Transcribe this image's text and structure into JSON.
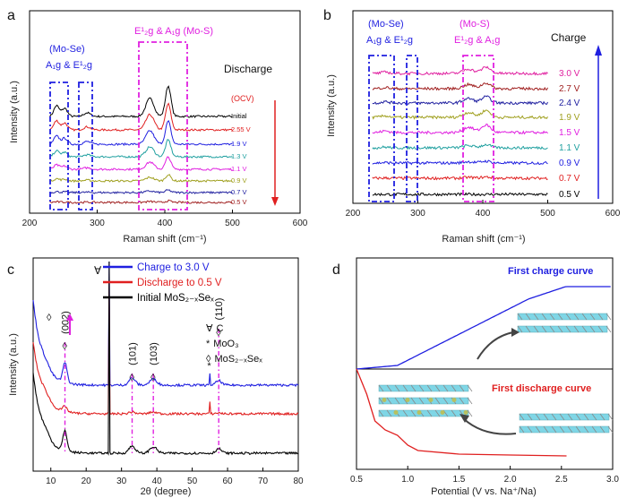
{
  "colors": {
    "blue": "#1f1fe0",
    "magenta": "#e020e0",
    "red": "#e02020",
    "black": "#000000"
  },
  "chart_data": [
    {
      "panel": "a",
      "type": "line",
      "xlabel": "Raman shift (cm⁻¹)",
      "ylabel": "Intensity (a.u.)",
      "xlim": [
        200,
        600
      ],
      "xticks": [
        200,
        300,
        400,
        500,
        600
      ],
      "direction_label": "Discharge",
      "ocv_label": "(OCV)",
      "annotations": [
        {
          "text": "(Mo-Se)",
          "color": "#1f1fe0"
        },
        {
          "text": "A₁g & E¹₂g",
          "color": "#1f1fe0"
        },
        {
          "text": "E¹₂g & A₁g (Mo-S)",
          "color": "#e020e0"
        }
      ],
      "peaks_cm1": [
        240,
        250,
        285,
        375,
        405
      ],
      "series": [
        {
          "name": "Initial",
          "color": "#000000"
        },
        {
          "name": "2.55 V",
          "color": "#e02020"
        },
        {
          "name": "1.9 V",
          "color": "#1f1fe0"
        },
        {
          "name": "1.3 V",
          "color": "#20a0a0"
        },
        {
          "name": "1.1 V",
          "color": "#e020e0"
        },
        {
          "name": "0.9 V",
          "color": "#a0a020"
        },
        {
          "name": "0.7 V",
          "color": "#2020a0"
        },
        {
          "name": "0.5 V",
          "color": "#a02020"
        }
      ]
    },
    {
      "panel": "b",
      "type": "line",
      "xlabel": "Raman shift (cm⁻¹)",
      "ylabel": "Intensity (a.u.)",
      "xlim": [
        200,
        600
      ],
      "xticks": [
        200,
        300,
        400,
        500,
        600
      ],
      "direction_label": "Charge",
      "annotations": [
        {
          "text": "(Mo-Se)",
          "color": "#1f1fe0"
        },
        {
          "text": "A₁g & E¹₂g",
          "color": "#1f1fe0"
        },
        {
          "text": "(Mo-S)",
          "color": "#e020e0"
        },
        {
          "text": "E¹₂g & A₁g",
          "color": "#e020e0"
        }
      ],
      "series": [
        {
          "name": "0.5 V",
          "color": "#000000"
        },
        {
          "name": "0.7 V",
          "color": "#e02020"
        },
        {
          "name": "0.9 V",
          "color": "#1f1fe0"
        },
        {
          "name": "1.1 V",
          "color": "#20a0a0"
        },
        {
          "name": "1.5 V",
          "color": "#e020e0"
        },
        {
          "name": "1.9 V",
          "color": "#a0a020"
        },
        {
          "name": "2.4 V",
          "color": "#2020a0"
        },
        {
          "name": "2.7 V",
          "color": "#a02020"
        },
        {
          "name": "3.0 V",
          "color": "#e020a0"
        }
      ]
    },
    {
      "panel": "c",
      "type": "line",
      "xlabel": "2θ (degree)",
      "ylabel": "Intensity (a.u.)",
      "xlim": [
        5,
        80
      ],
      "xticks": [
        10,
        20,
        30,
        40,
        50,
        60,
        70,
        80
      ],
      "legend": [
        {
          "name": "Charge to 3.0 V",
          "color": "#1f1fe0"
        },
        {
          "name": "Discharge to 0.5 V",
          "color": "#e02020"
        },
        {
          "name": "Initial MoS₂₋ₓSeₓ",
          "color": "#000000"
        }
      ],
      "markers_legend": [
        {
          "symbol": "∀",
          "text": "C"
        },
        {
          "symbol": "*",
          "text": "MoO₃"
        },
        {
          "symbol": "◊",
          "text": "MoS₂₋ₓSeₓ"
        }
      ],
      "reflections": [
        {
          "label": "(002)",
          "two_theta": 14.0
        },
        {
          "label": "(101)",
          "two_theta": 33.0
        },
        {
          "label": "(103)",
          "two_theta": 39.0
        },
        {
          "label": "(110)",
          "two_theta": 57.5
        }
      ],
      "carbon_peak": 26.5,
      "moo3_peak": 55.0
    },
    {
      "panel": "d",
      "type": "line",
      "xlabel": "Potential (V vs. Na⁺/Na)",
      "xlim": [
        0.5,
        3.0
      ],
      "xticks": [
        0.5,
        1.0,
        1.5,
        2.0,
        2.5,
        3.0
      ],
      "series": [
        {
          "name": "First charge curve",
          "color": "#1f1fe0"
        },
        {
          "name": "First discharge curve",
          "color": "#e02020"
        }
      ]
    }
  ],
  "panels": {
    "a": {
      "label": "a"
    },
    "b": {
      "label": "b"
    },
    "c": {
      "label": "c"
    },
    "d": {
      "label": "d"
    }
  }
}
